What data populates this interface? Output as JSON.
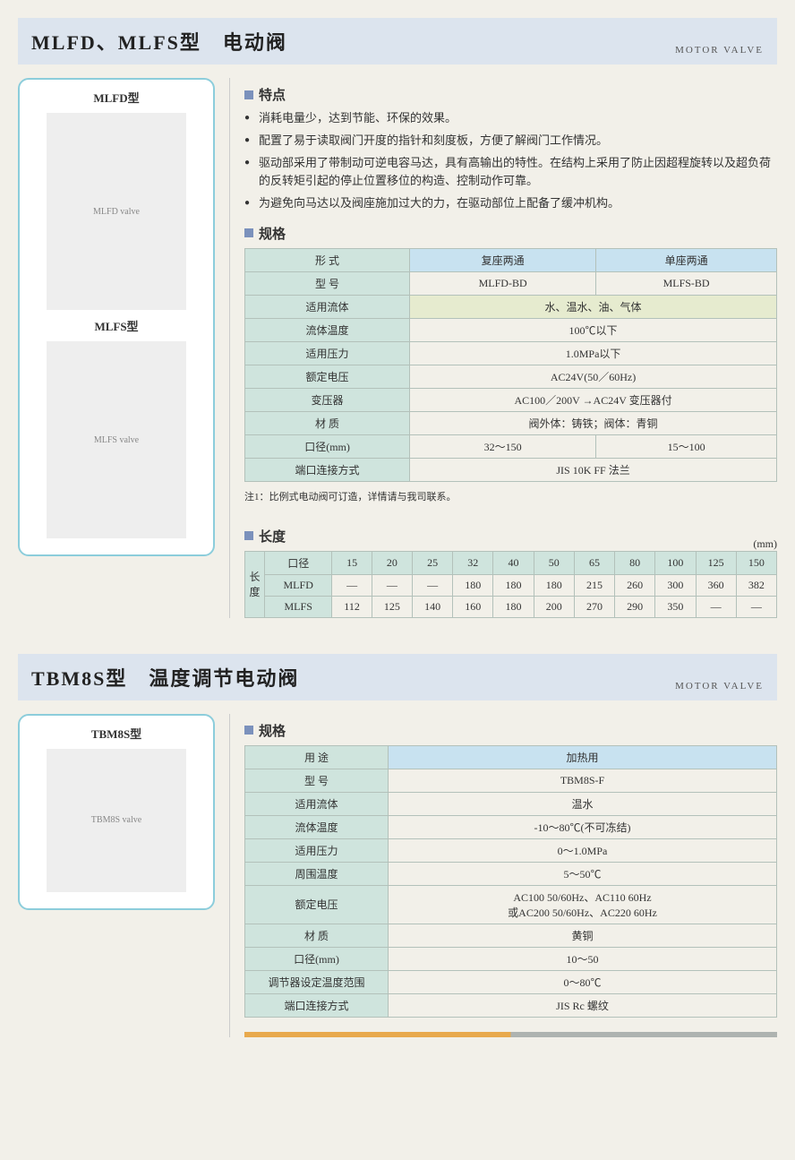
{
  "section1": {
    "title": "MLFD、MLFS型　电动阀",
    "subtitle": "MOTOR VALVE",
    "img1_label": "MLFD型",
    "img2_label": "MLFS型",
    "features_title": "特点",
    "features": [
      "消耗电量少，达到节能、环保的效果。",
      "配置了易于读取阀门开度的指针和刻度板，方便了解阀门工作情况。",
      "驱动部采用了带制动可逆电容马达，具有高输出的特性。在结构上采用了防止因超程旋转以及超负荷的反转矩引起的停止位置移位的构造、控制动作可靠。",
      "为避免向马达以及阀座施加过大的力，在驱动部位上配备了缓冲机构。"
    ],
    "spec_title": "规格",
    "spec": {
      "rows": [
        {
          "label": "形 式",
          "c1": "复座两通",
          "c2": "单座两通",
          "split": true,
          "blueRow": true
        },
        {
          "label": "型 号",
          "c1": "MLFD-BD",
          "c2": "MLFS-BD",
          "split": true
        },
        {
          "label": "适用流体",
          "c1": "水、温水、油、气体",
          "split": false,
          "greenRow": true
        },
        {
          "label": "流体温度",
          "c1": "100℃以下",
          "split": false
        },
        {
          "label": "适用压力",
          "c1": "1.0MPa以下",
          "split": false
        },
        {
          "label": "额定电压",
          "c1": "AC24V(50／60Hz)",
          "split": false
        },
        {
          "label": "变压器",
          "c1": "AC100／200V →AC24V 变压器付",
          "split": false
        },
        {
          "label": "材 质",
          "c1": "阀外体：铸铁；阀体：青铜",
          "split": false
        },
        {
          "label": "口径(mm)",
          "c1": "32～150",
          "c2": "15～100",
          "split": true
        },
        {
          "label": "端口连接方式",
          "c1": "JIS 10K FF 法兰",
          "split": false
        }
      ]
    },
    "note": "注1：比例式电动阀可订造，详情请与我司联系。",
    "length_title": "长度",
    "length_unit": "(mm)",
    "length": {
      "diam_label": "口径",
      "vert_label": "长度",
      "diams": [
        "15",
        "20",
        "25",
        "32",
        "40",
        "50",
        "65",
        "80",
        "100",
        "125",
        "150"
      ],
      "mlfd_label": "MLFD",
      "mlfs_label": "MLFS",
      "mlfd": [
        "—",
        "—",
        "—",
        "180",
        "180",
        "180",
        "215",
        "260",
        "300",
        "360",
        "382"
      ],
      "mlfs": [
        "112",
        "125",
        "140",
        "160",
        "180",
        "200",
        "270",
        "290",
        "350",
        "—",
        "—"
      ]
    }
  },
  "section2": {
    "title": "TBM8S型　温度调节电动阀",
    "subtitle": "MOTOR VALVE",
    "img_label": "TBM8S型",
    "spec_title": "规格",
    "spec": {
      "rows": [
        {
          "label": "用 途",
          "val": "加热用",
          "blueRow": true
        },
        {
          "label": "型 号",
          "val": "TBM8S-F"
        },
        {
          "label": "适用流体",
          "val": "温水"
        },
        {
          "label": "流体温度",
          "val": "-10～80℃(不可冻结)"
        },
        {
          "label": "适用压力",
          "val": "0～1.0MPa"
        },
        {
          "label": "周围温度",
          "val": "5～50℃"
        },
        {
          "label": "额定电压",
          "val": "AC100 50/60Hz、AC110 60Hz\n或AC200 50/60Hz、AC220 60Hz"
        },
        {
          "label": "材 质",
          "val": "黄铜"
        },
        {
          "label": "口径(mm)",
          "val": "10～50"
        },
        {
          "label": "调节器设定温度范围",
          "val": "0～80℃"
        },
        {
          "label": "端口连接方式",
          "val": "JIS Rc 螺纹"
        }
      ]
    }
  }
}
